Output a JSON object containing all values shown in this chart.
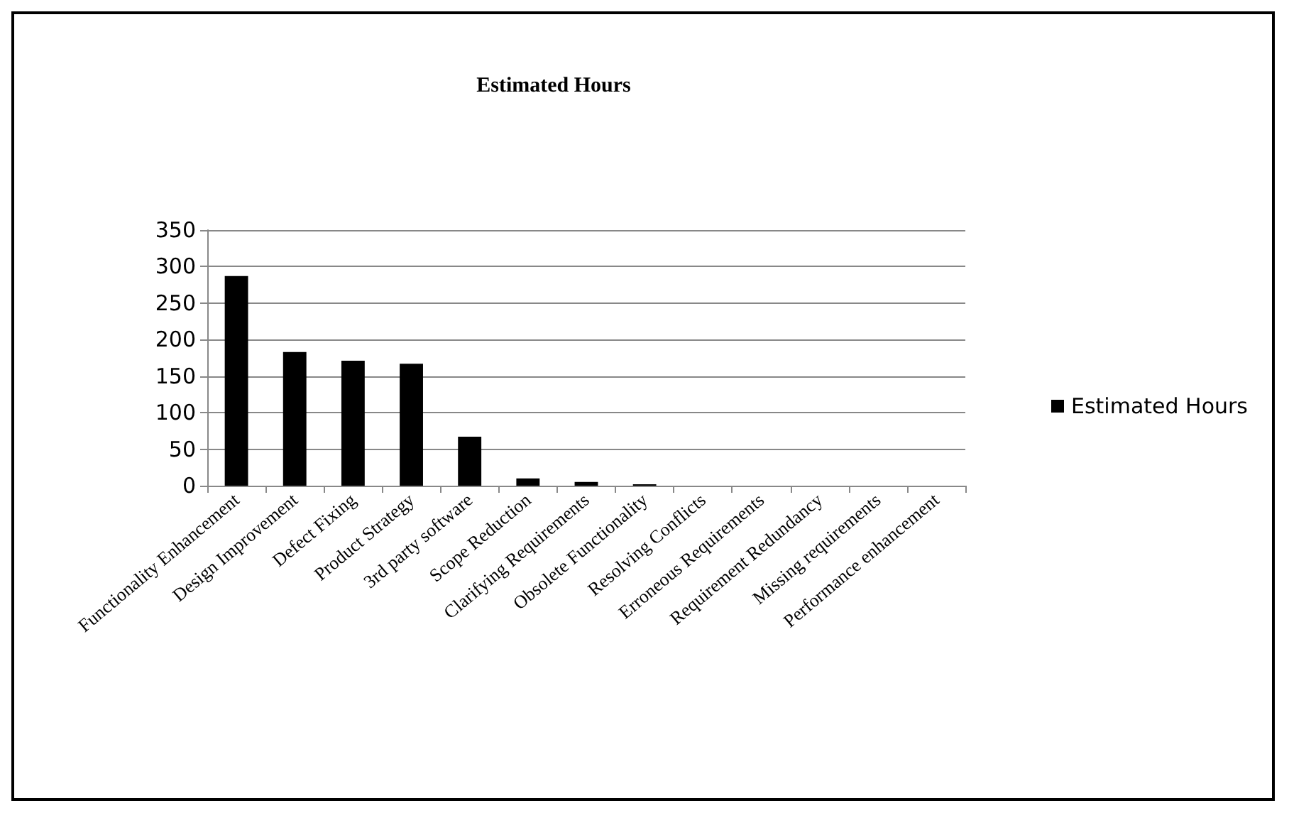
{
  "chart_data": {
    "type": "bar",
    "title": "Estimated Hours",
    "categories": [
      "Functionality Enhancement",
      "Design Improvement",
      "Defect Fixing",
      "Product Strategy",
      "3rd party software",
      "Scope Reduction",
      "Clarifying Requirements",
      "Obsolete Functionality",
      "Resolving Conflicts",
      "Erroneous Requirements",
      "Requirement Redundancy",
      "Missing requirements",
      "Performance enhancement"
    ],
    "series": [
      {
        "name": "Estimated Hours",
        "color": "#000000",
        "values": [
          287,
          183,
          171,
          167,
          67,
          10,
          5,
          2,
          0,
          0,
          0,
          0,
          0
        ]
      }
    ],
    "ylim": [
      0,
      350
    ],
    "yticks": [
      0,
      50,
      100,
      150,
      200,
      250,
      300,
      350
    ],
    "grid": "y",
    "legend": "right"
  }
}
